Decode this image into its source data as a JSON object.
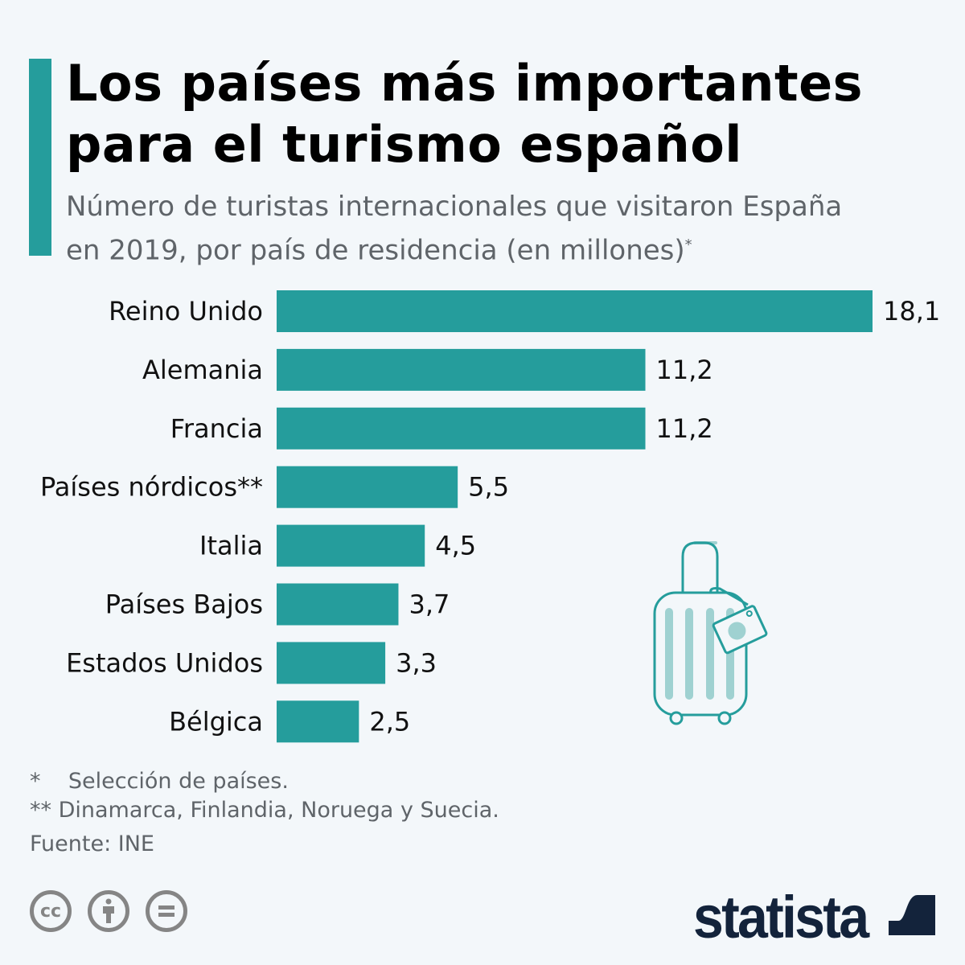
{
  "title_lines": [
    "Los países más importantes",
    "para el turismo español"
  ],
  "subtitle_lines": [
    "Número de turistas internacionales que visitaron España",
    "en 2019, por país de residencia (en millones)"
  ],
  "subtitle_mark": "*",
  "colors": {
    "bar": "#259d9c",
    "accent": "#259d9c",
    "background": "#f3f7fa",
    "logo": "#13233b"
  },
  "chart_data": {
    "type": "bar",
    "orientation": "horizontal",
    "categories": [
      "Reino Unido",
      "Alemania",
      "Francia",
      "Países nórdicos**",
      "Italia",
      "Países Bajos",
      "Estados Unidos",
      "Bélgica"
    ],
    "values": [
      18.1,
      11.2,
      11.2,
      5.5,
      4.5,
      3.7,
      3.3,
      2.5
    ],
    "value_labels": [
      "18,1",
      "11,2",
      "11,2",
      "5,5",
      "4,5",
      "3,7",
      "3,3",
      "2,5"
    ],
    "xlim": [
      0,
      18.1
    ],
    "grid": false
  },
  "notes": [
    "*    Selección de países.",
    "** Dinamarca, Finlandia, Noruega y Suecia."
  ],
  "source": "Fuente: INE",
  "license_icons": [
    "cc-icon",
    "attribution-icon",
    "no-derivatives-icon"
  ],
  "logo": "statista"
}
